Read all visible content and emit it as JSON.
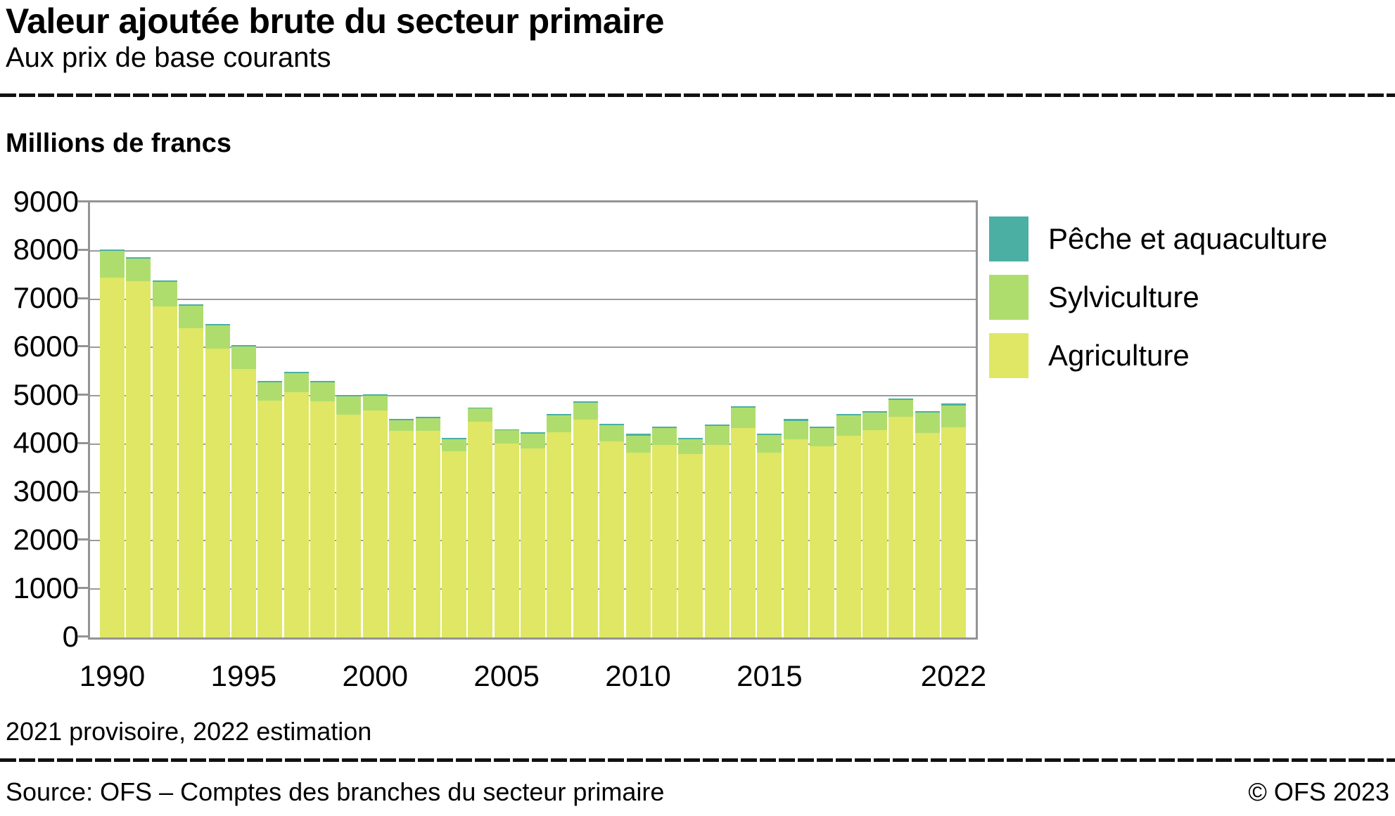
{
  "header": {
    "title": "Valeur ajoutée brute du secteur primaire",
    "subtitle": "Aux prix de base courants"
  },
  "unit_label": "Millions de francs",
  "chart_data": {
    "type": "bar",
    "stacked": true,
    "title": "Valeur ajoutée brute du secteur primaire",
    "subtitle": "Aux prix de base courants",
    "ylabel": "Millions de francs",
    "xlabel": "",
    "ylim": [
      0,
      9000
    ],
    "ytick_interval": 1000,
    "grid": true,
    "legend_position": "right",
    "categories": [
      1990,
      1991,
      1992,
      1993,
      1994,
      1995,
      1996,
      1997,
      1998,
      1999,
      2000,
      2001,
      2002,
      2003,
      2004,
      2005,
      2006,
      2007,
      2008,
      2009,
      2010,
      2011,
      2012,
      2013,
      2014,
      2015,
      2016,
      2017,
      2018,
      2019,
      2020,
      2021,
      2022
    ],
    "series": [
      {
        "name": "Agriculture",
        "key": "agriculture",
        "color": "#dfe765",
        "values": [
          7450,
          7370,
          6850,
          6400,
          5980,
          5550,
          4900,
          5080,
          4890,
          4610,
          4700,
          4270,
          4275,
          3860,
          4470,
          4010,
          3910,
          4240,
          4510,
          4060,
          3820,
          3990,
          3800,
          3990,
          4330,
          3830,
          4100,
          3950,
          4180,
          4290,
          4560,
          4230,
          4350
        ]
      },
      {
        "name": "Sylviculture",
        "key": "sylviculture",
        "color": "#aedd6e",
        "values": [
          550,
          470,
          505,
          460,
          470,
          470,
          380,
          385,
          390,
          375,
          300,
          225,
          265,
          245,
          265,
          275,
          300,
          360,
          350,
          325,
          360,
          345,
          305,
          380,
          430,
          360,
          385,
          380,
          420,
          365,
          360,
          425,
          455
        ]
      },
      {
        "name": "Pêche et aquaculture",
        "key": "peche-et-aquaculture",
        "color": "#4bafa3",
        "values": [
          30,
          30,
          30,
          30,
          30,
          30,
          25,
          25,
          25,
          25,
          30,
          25,
          25,
          25,
          25,
          25,
          30,
          30,
          30,
          30,
          30,
          30,
          30,
          30,
          30,
          30,
          30,
          30,
          30,
          30,
          30,
          30,
          30
        ]
      }
    ],
    "xticks": [
      {
        "label": "1990",
        "index": 0
      },
      {
        "label": "1995",
        "index": 5
      },
      {
        "label": "2000",
        "index": 10
      },
      {
        "label": "2005",
        "index": 15
      },
      {
        "label": "2010",
        "index": 20
      },
      {
        "label": "2015",
        "index": 25
      },
      {
        "label": "2022",
        "index": 32
      }
    ]
  },
  "legend": {
    "items": [
      {
        "label": "Pêche et aquaculture",
        "color": "#4bafa3"
      },
      {
        "label": "Sylviculture",
        "color": "#aedd6e"
      },
      {
        "label": "Agriculture",
        "color": "#dfe765"
      }
    ]
  },
  "footnote": "2021 provisoire, 2022 estimation",
  "footer": {
    "source": "Source: OFS – Comptes des branches du secteur primaire",
    "copyright": "© OFS 2023"
  }
}
